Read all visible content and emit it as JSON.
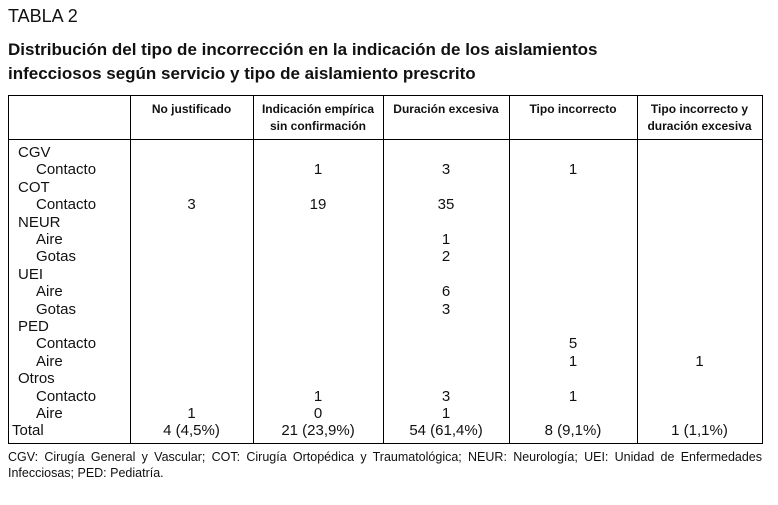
{
  "label": "TABLA 2",
  "title": "Distribución del tipo de incorrección en la indicación de los aislamientos infecciosos según servicio y tipo de aislamiento prescrito",
  "table": {
    "columns": [
      "No justificado",
      "Indicación empírica sin confirmación",
      "Duración excesiva",
      "Tipo incorrecto",
      "Tipo incorrecto y duración excesiva"
    ],
    "groups": [
      {
        "name": "CGV",
        "rows": [
          {
            "label": "Contacto",
            "values": [
              null,
              1,
              3,
              1,
              null
            ]
          }
        ]
      },
      {
        "name": "COT",
        "rows": [
          {
            "label": "Contacto",
            "values": [
              3,
              19,
              35,
              null,
              null
            ]
          }
        ]
      },
      {
        "name": "NEUR",
        "rows": [
          {
            "label": "Aire",
            "values": [
              null,
              null,
              1,
              null,
              null
            ]
          },
          {
            "label": "Gotas",
            "values": [
              null,
              null,
              2,
              null,
              null
            ]
          }
        ]
      },
      {
        "name": "UEI",
        "rows": [
          {
            "label": "Aire",
            "values": [
              null,
              null,
              6,
              null,
              null
            ]
          },
          {
            "label": "Gotas",
            "values": [
              null,
              null,
              3,
              null,
              null
            ]
          }
        ]
      },
      {
        "name": "PED",
        "rows": [
          {
            "label": "Contacto",
            "values": [
              null,
              null,
              null,
              5,
              null
            ]
          },
          {
            "label": "Aire",
            "values": [
              null,
              null,
              null,
              1,
              1
            ]
          }
        ]
      },
      {
        "name": "Otros",
        "rows": [
          {
            "label": "Contacto",
            "values": [
              null,
              1,
              3,
              1,
              null
            ]
          },
          {
            "label": "Aire",
            "values": [
              1,
              0,
              1,
              null,
              null
            ]
          }
        ]
      }
    ],
    "total": {
      "label": "Total",
      "values": [
        "4 (4,5%)",
        "21 (23,9%)",
        "54 (61,4%)",
        "8 (9,1%)",
        "1 (1,1%)"
      ]
    }
  },
  "footnote": "CGV: Cirugía General y Vascular; COT: Cirugía Ortopédica y Traumatológica; NEUR: Neurología; UEI: Unidad de Enfermedades Infecciosas; PED: Pediatría."
}
